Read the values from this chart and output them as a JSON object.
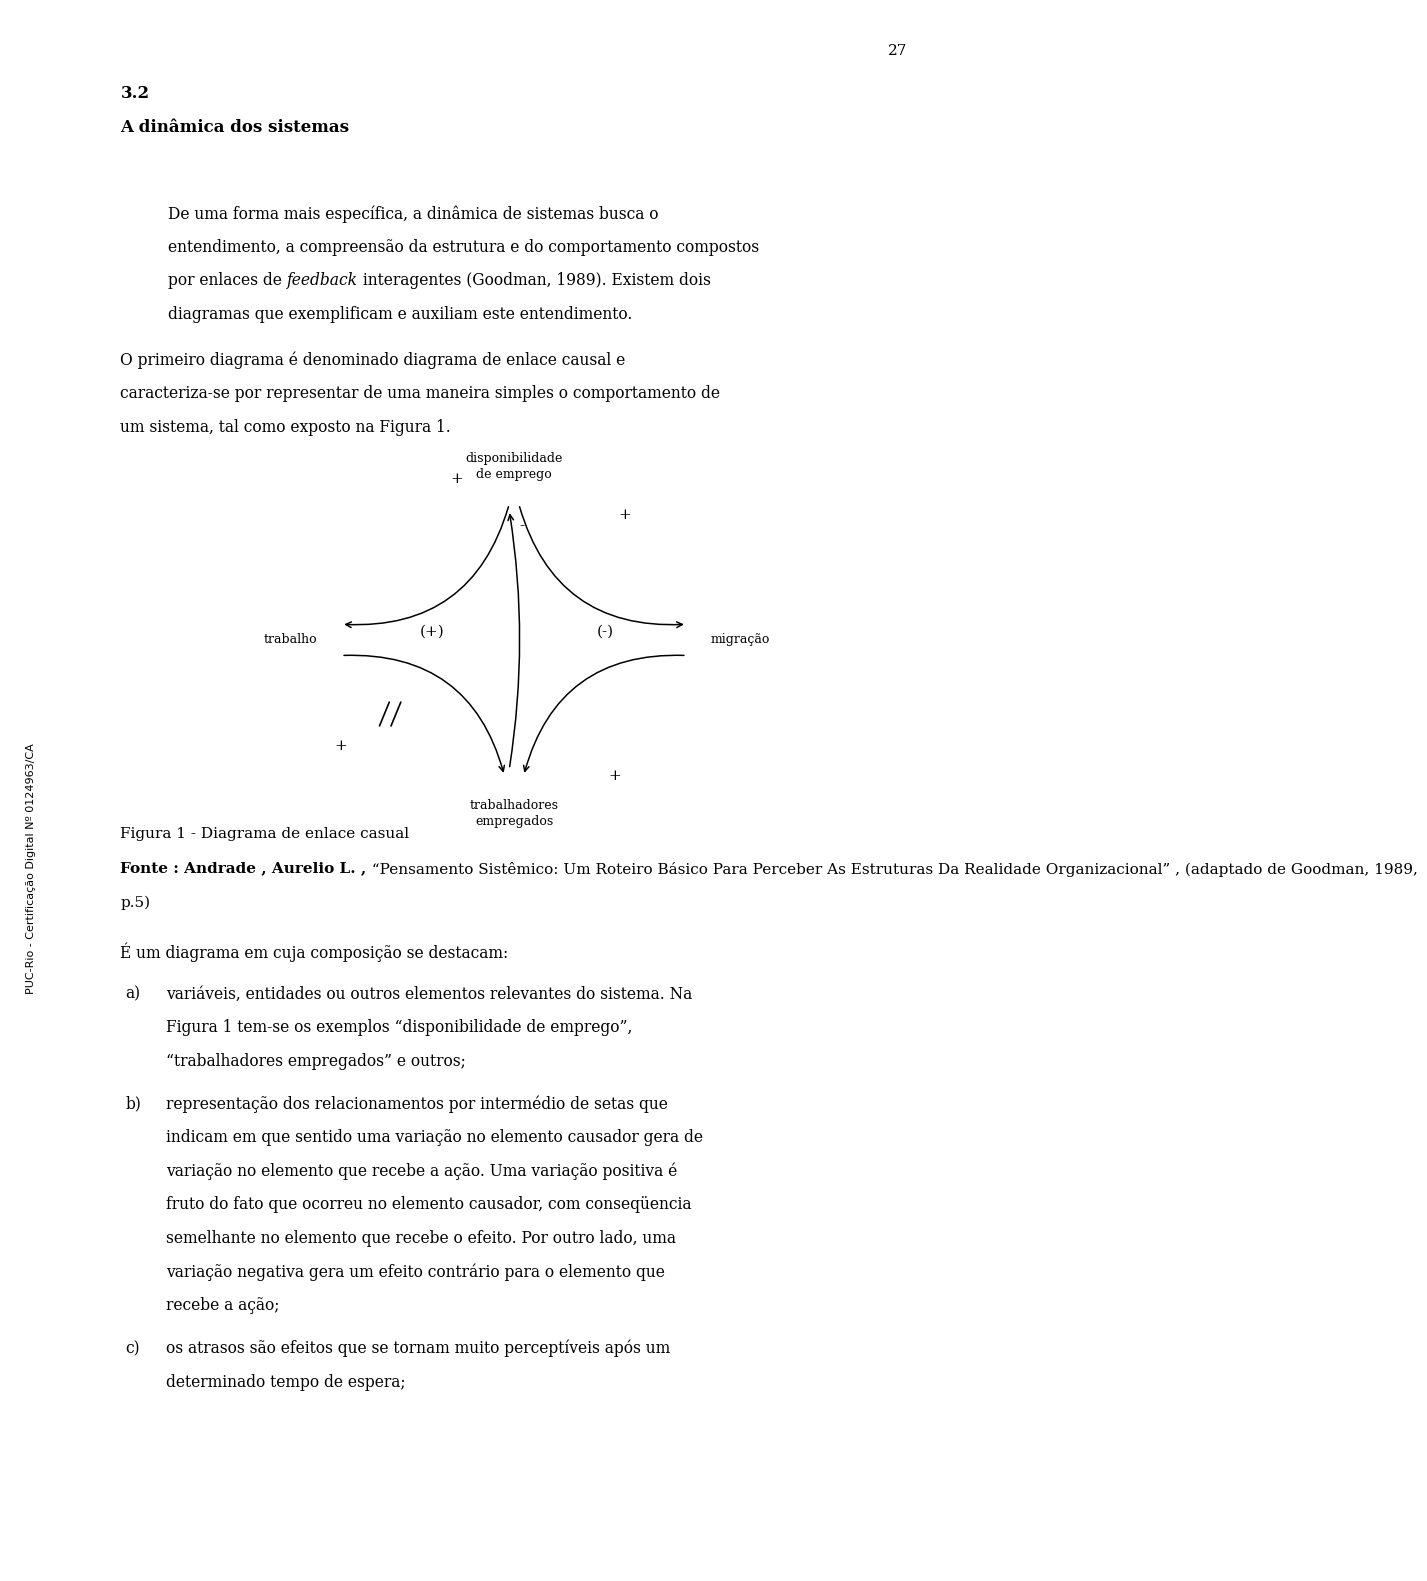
{
  "page_number": "27",
  "bg_color": "#ffffff",
  "text_color": "#000000",
  "lm": 0.115,
  "rm": 0.935,
  "indent": 0.165,
  "section_number": "3.2",
  "section_title": "A dinâmica dos sistemas",
  "para1_before_feedback": "De uma forma mais específica, a dinâmica de sistemas busca o entendimento, a compreensão da estrutura e do comportamento compostos por enlaces de ",
  "para1_feedback": "feedback",
  "para1_after_feedback": "  interagentes (Goodman, 1989). Existem dois diagramas que exemplificam e auxiliam este entendimento.",
  "para2": "O primeiro diagrama é denominado diagrama de enlace causal e caracteriza-se por representar de uma maneira simples o comportamento de um sistema, tal como exposto na Figura 1.",
  "fig_caption": "Figura 1 - Diagrama de enlace casual",
  "fonte_bold": "Fonte : Andrade , Aurelio L. ,",
  "fonte_rest": " “Pensamento Sistêmico: Um Roteiro Básico Para Perceber As Estruturas Da Realidade Organizacional” , (adaptado de Goodman, 1989,",
  "fonte_line2": "p.5)",
  "para3": "É um diagrama em cuja composição se destacam:",
  "item_a_label": "a)",
  "item_a_text": "variáveis, entidades ou outros elementos relevantes do sistema. Na Figura 1 tem-se os exemplos “disponibilidade de emprego”, “trabalhadores empregados” e outros;",
  "item_b_label": "b)",
  "item_b_text": "representação dos relacionamentos por intermédio de setas que indicam em que sentido uma variação no elemento causador gera de variação no elemento que recebe a ação. Uma variação positiva é fruto do fato que ocorreu no elemento causador, com conseqüencia semelhante no elemento que recebe o efeito. Por outro lado, uma variação negativa gera um efeito contrário para o elemento que recebe a ação;",
  "item_c_label": "c)",
  "item_c_text": "os atrasos são efeitos que se tornam muito perceptíveis após um determinado tempo de espera;",
  "sidebar_text": "PUC-Rio - Certificação Digital Nº 0124963/CA"
}
